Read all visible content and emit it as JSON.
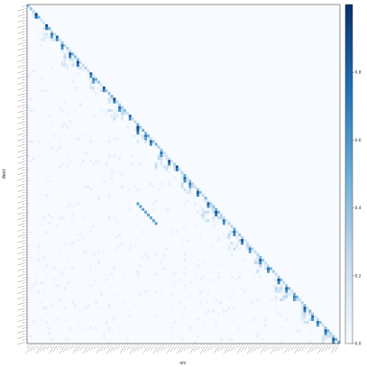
{
  "chart_data": {
    "type": "heatmap",
    "title": "",
    "xlabel": "src",
    "ylabel": "dest",
    "colormap": "Blues",
    "colors": {
      "low": "#f7fbff",
      "high": "#08306b"
    },
    "value_range": [
      0,
      1
    ],
    "colorbar_ticks": [
      "0.0",
      "0.2",
      "0.4",
      "0.6",
      "0.8"
    ],
    "colorbar_tick_values": [
      0.0,
      0.2,
      0.4,
      0.6,
      0.8
    ],
    "n_rows": 120,
    "n_cols": 120,
    "diagonal_blocks": [
      [
        2,
        5
      ],
      [
        6,
        12
      ],
      [
        13,
        22
      ],
      [
        23,
        30
      ],
      [
        31,
        40
      ],
      [
        41,
        48
      ],
      [
        49,
        58
      ],
      [
        59,
        66
      ],
      [
        67,
        76
      ],
      [
        77,
        86
      ],
      [
        87,
        94
      ],
      [
        95,
        104
      ],
      [
        105,
        112
      ],
      [
        113,
        119
      ]
    ],
    "strong_cells": [
      [
        3,
        3,
        0.95
      ],
      [
        7,
        7,
        0.9
      ],
      [
        10,
        9,
        0.7
      ],
      [
        11,
        11,
        0.8
      ],
      [
        14,
        13,
        0.75
      ],
      [
        17,
        16,
        0.85
      ],
      [
        20,
        19,
        0.9
      ],
      [
        24,
        24,
        0.8
      ],
      [
        26,
        25,
        0.7
      ],
      [
        29,
        29,
        0.85
      ],
      [
        33,
        33,
        0.9
      ],
      [
        36,
        35,
        0.75
      ],
      [
        39,
        39,
        0.8
      ],
      [
        43,
        42,
        0.95
      ],
      [
        44,
        42,
        0.85
      ],
      [
        46,
        45,
        0.7
      ],
      [
        48,
        47,
        0.8
      ],
      [
        52,
        51,
        0.75
      ],
      [
        55,
        54,
        0.85
      ],
      [
        57,
        57,
        0.9
      ],
      [
        61,
        60,
        0.8
      ],
      [
        63,
        62,
        0.7
      ],
      [
        66,
        65,
        0.85
      ],
      [
        70,
        69,
        0.8
      ],
      [
        73,
        72,
        0.9
      ],
      [
        76,
        75,
        0.75
      ],
      [
        80,
        79,
        0.8
      ],
      [
        83,
        82,
        0.85
      ],
      [
        86,
        85,
        0.7
      ],
      [
        90,
        89,
        0.8
      ],
      [
        93,
        92,
        0.75
      ],
      [
        97,
        96,
        0.85
      ],
      [
        100,
        99,
        0.8
      ],
      [
        103,
        102,
        0.7
      ],
      [
        107,
        106,
        0.85
      ],
      [
        110,
        109,
        0.8
      ],
      [
        112,
        111,
        0.75
      ],
      [
        115,
        114,
        0.8
      ],
      [
        118,
        117,
        0.85
      ]
    ],
    "off_diagonal_streaks": [
      [
        70,
        42
      ],
      [
        71,
        43
      ],
      [
        72,
        44
      ],
      [
        73,
        45
      ],
      [
        74,
        46
      ],
      [
        75,
        47
      ],
      [
        76,
        48
      ],
      [
        77,
        49
      ]
    ]
  }
}
